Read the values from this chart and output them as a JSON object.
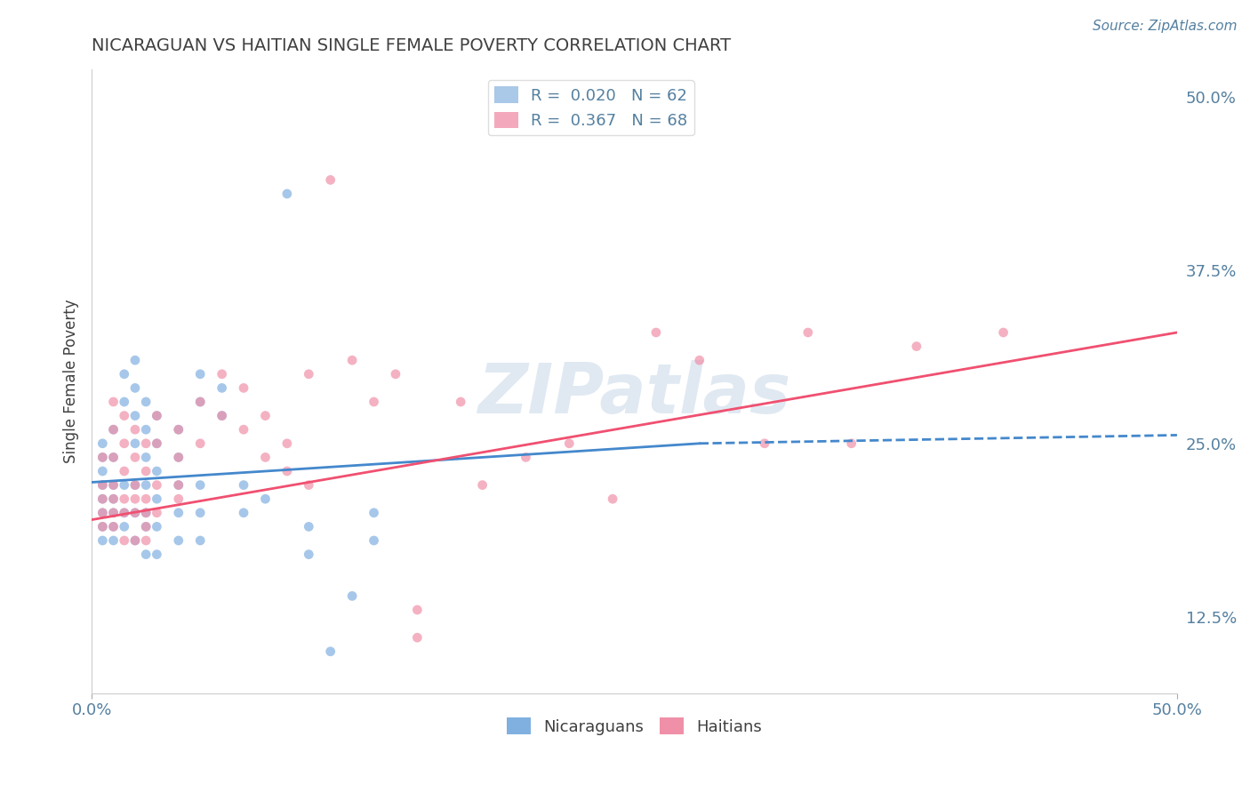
{
  "title": "NICARAGUAN VS HAITIAN SINGLE FEMALE POVERTY CORRELATION CHART",
  "source_text": "Source: ZipAtlas.com",
  "ylabel": "Single Female Poverty",
  "xlim": [
    0.0,
    0.5
  ],
  "ylim": [
    0.07,
    0.52
  ],
  "ytick_labels_right": [
    "12.5%",
    "25.0%",
    "37.5%",
    "50.0%"
  ],
  "ytick_vals_right": [
    0.125,
    0.25,
    0.375,
    0.5
  ],
  "legend_entries": [
    {
      "label": "R =  0.020   N = 62",
      "color": "#aac8e8"
    },
    {
      "label": "R =  0.367   N = 68",
      "color": "#f4a8bc"
    }
  ],
  "bottom_legend": [
    "Nicaraguans",
    "Haitians"
  ],
  "nic_color": "#80b0e0",
  "hai_color": "#f090a8",
  "nic_line_color": "#4488cc",
  "hai_line_color": "#f05070",
  "watermark": "ZIPatlas",
  "watermark_color": "#c8d8e8",
  "title_color": "#404040",
  "axis_label_color": "#5580a0",
  "grid_color": "#c8d8e8",
  "nic_scatter": [
    [
      0.005,
      0.22
    ],
    [
      0.005,
      0.24
    ],
    [
      0.005,
      0.2
    ],
    [
      0.005,
      0.23
    ],
    [
      0.005,
      0.19
    ],
    [
      0.005,
      0.21
    ],
    [
      0.005,
      0.25
    ],
    [
      0.005,
      0.18
    ],
    [
      0.01,
      0.26
    ],
    [
      0.01,
      0.22
    ],
    [
      0.01,
      0.2
    ],
    [
      0.01,
      0.24
    ],
    [
      0.01,
      0.21
    ],
    [
      0.01,
      0.19
    ],
    [
      0.01,
      0.18
    ],
    [
      0.015,
      0.3
    ],
    [
      0.015,
      0.28
    ],
    [
      0.015,
      0.22
    ],
    [
      0.015,
      0.2
    ],
    [
      0.015,
      0.19
    ],
    [
      0.02,
      0.31
    ],
    [
      0.02,
      0.29
    ],
    [
      0.02,
      0.27
    ],
    [
      0.02,
      0.25
    ],
    [
      0.02,
      0.22
    ],
    [
      0.02,
      0.2
    ],
    [
      0.02,
      0.18
    ],
    [
      0.025,
      0.28
    ],
    [
      0.025,
      0.26
    ],
    [
      0.025,
      0.24
    ],
    [
      0.025,
      0.22
    ],
    [
      0.025,
      0.2
    ],
    [
      0.025,
      0.19
    ],
    [
      0.025,
      0.17
    ],
    [
      0.03,
      0.27
    ],
    [
      0.03,
      0.25
    ],
    [
      0.03,
      0.23
    ],
    [
      0.03,
      0.21
    ],
    [
      0.03,
      0.19
    ],
    [
      0.03,
      0.17
    ],
    [
      0.04,
      0.26
    ],
    [
      0.04,
      0.24
    ],
    [
      0.04,
      0.22
    ],
    [
      0.04,
      0.2
    ],
    [
      0.04,
      0.18
    ],
    [
      0.05,
      0.3
    ],
    [
      0.05,
      0.28
    ],
    [
      0.05,
      0.22
    ],
    [
      0.05,
      0.2
    ],
    [
      0.05,
      0.18
    ],
    [
      0.06,
      0.29
    ],
    [
      0.06,
      0.27
    ],
    [
      0.07,
      0.22
    ],
    [
      0.07,
      0.2
    ],
    [
      0.08,
      0.21
    ],
    [
      0.09,
      0.43
    ],
    [
      0.1,
      0.19
    ],
    [
      0.1,
      0.17
    ],
    [
      0.11,
      0.1
    ],
    [
      0.12,
      0.14
    ],
    [
      0.13,
      0.2
    ],
    [
      0.13,
      0.18
    ]
  ],
  "hai_scatter": [
    [
      0.005,
      0.22
    ],
    [
      0.005,
      0.24
    ],
    [
      0.005,
      0.2
    ],
    [
      0.005,
      0.19
    ],
    [
      0.005,
      0.21
    ],
    [
      0.01,
      0.26
    ],
    [
      0.01,
      0.24
    ],
    [
      0.01,
      0.22
    ],
    [
      0.01,
      0.2
    ],
    [
      0.01,
      0.19
    ],
    [
      0.01,
      0.28
    ],
    [
      0.01,
      0.21
    ],
    [
      0.015,
      0.27
    ],
    [
      0.015,
      0.25
    ],
    [
      0.015,
      0.23
    ],
    [
      0.015,
      0.21
    ],
    [
      0.015,
      0.2
    ],
    [
      0.015,
      0.18
    ],
    [
      0.02,
      0.26
    ],
    [
      0.02,
      0.24
    ],
    [
      0.02,
      0.22
    ],
    [
      0.02,
      0.21
    ],
    [
      0.02,
      0.2
    ],
    [
      0.02,
      0.18
    ],
    [
      0.025,
      0.25
    ],
    [
      0.025,
      0.23
    ],
    [
      0.025,
      0.21
    ],
    [
      0.025,
      0.2
    ],
    [
      0.025,
      0.19
    ],
    [
      0.025,
      0.18
    ],
    [
      0.03,
      0.27
    ],
    [
      0.03,
      0.25
    ],
    [
      0.03,
      0.22
    ],
    [
      0.03,
      0.2
    ],
    [
      0.04,
      0.26
    ],
    [
      0.04,
      0.24
    ],
    [
      0.04,
      0.22
    ],
    [
      0.04,
      0.21
    ],
    [
      0.05,
      0.28
    ],
    [
      0.05,
      0.25
    ],
    [
      0.06,
      0.3
    ],
    [
      0.06,
      0.27
    ],
    [
      0.07,
      0.29
    ],
    [
      0.07,
      0.26
    ],
    [
      0.08,
      0.27
    ],
    [
      0.08,
      0.24
    ],
    [
      0.09,
      0.25
    ],
    [
      0.09,
      0.23
    ],
    [
      0.1,
      0.3
    ],
    [
      0.1,
      0.22
    ],
    [
      0.11,
      0.44
    ],
    [
      0.12,
      0.31
    ],
    [
      0.13,
      0.28
    ],
    [
      0.14,
      0.3
    ],
    [
      0.15,
      0.11
    ],
    [
      0.15,
      0.13
    ],
    [
      0.17,
      0.28
    ],
    [
      0.18,
      0.22
    ],
    [
      0.2,
      0.24
    ],
    [
      0.22,
      0.25
    ],
    [
      0.24,
      0.21
    ],
    [
      0.26,
      0.33
    ],
    [
      0.28,
      0.31
    ],
    [
      0.31,
      0.25
    ],
    [
      0.33,
      0.33
    ],
    [
      0.35,
      0.25
    ],
    [
      0.38,
      0.32
    ],
    [
      0.42,
      0.33
    ]
  ],
  "nic_line_x": [
    0.0,
    0.28
  ],
  "nic_line_y": [
    0.222,
    0.25
  ],
  "hai_line_x": [
    0.0,
    0.5
  ],
  "hai_line_y": [
    0.195,
    0.33
  ]
}
